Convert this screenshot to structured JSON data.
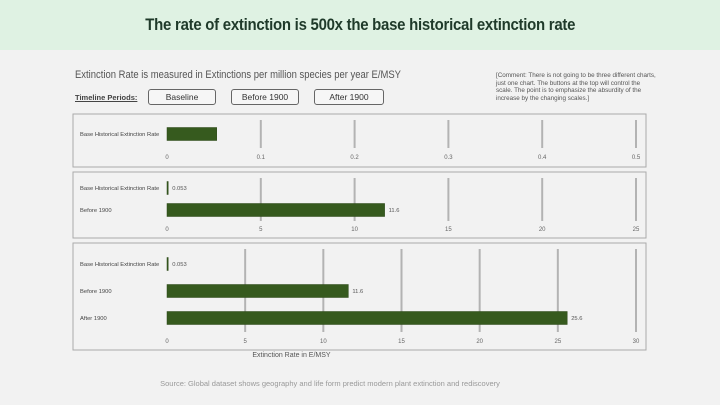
{
  "header": {
    "title": "The rate of extinction is 500x the base historical extinction rate"
  },
  "subtitle": "Extinction Rate is measured in Extinctions per million species per year E/MSY",
  "comment": "[Comment: There is not going to be three different charts, just one chart. The buttons at the top will control the scale. The point is to emphasize the absurdity of the increase by the changing scales.]",
  "timeline": {
    "label": "Timeline Periods:",
    "buttons": [
      "Baseline",
      "Before 1900",
      "After 1900"
    ]
  },
  "source": "Source: Global dataset shows geography and life form predict modern plant extinction and rediscovery",
  "colors": {
    "bar": "#365a1e",
    "gridline": "#b3b3b3",
    "panel_border": "#aaaaaa",
    "header_bg": "#dff2e3"
  },
  "chart_data": [
    {
      "type": "bar",
      "orientation": "horizontal",
      "categories": [
        "Base Historical Extinction Rate"
      ],
      "values": [
        0.053
      ],
      "data_labels": [
        ""
      ],
      "xlim": [
        0,
        0.5
      ],
      "xticks": [
        0,
        0.1,
        0.2,
        0.3,
        0.4,
        0.5
      ],
      "xtick_labels": [
        "0",
        "0.1",
        "0.2",
        "0.3",
        "0.4",
        "0.5"
      ],
      "xlabel": "",
      "grid": true
    },
    {
      "type": "bar",
      "orientation": "horizontal",
      "categories": [
        "Base Historical Extinction Rate",
        "Before 1900"
      ],
      "values": [
        0.053,
        11.6
      ],
      "data_labels": [
        "0.053",
        "11.6"
      ],
      "xlim": [
        0,
        25
      ],
      "xticks": [
        0,
        5,
        10,
        15,
        20,
        25
      ],
      "xtick_labels": [
        "0",
        "5",
        "10",
        "15",
        "20",
        "25"
      ],
      "xlabel": "",
      "grid": true
    },
    {
      "type": "bar",
      "orientation": "horizontal",
      "categories": [
        "Base Historical Extinction Rate",
        "Before 1900",
        "After 1900"
      ],
      "values": [
        0.053,
        11.6,
        25.6
      ],
      "data_labels": [
        "0.053",
        "11.6",
        "25.6"
      ],
      "xlim": [
        0,
        30
      ],
      "xticks": [
        0,
        5,
        10,
        15,
        20,
        25,
        30
      ],
      "xtick_labels": [
        "0",
        "5",
        "10",
        "15",
        "20",
        "25",
        "30"
      ],
      "xlabel": "Extinction Rate in E/MSY",
      "grid": true
    }
  ]
}
